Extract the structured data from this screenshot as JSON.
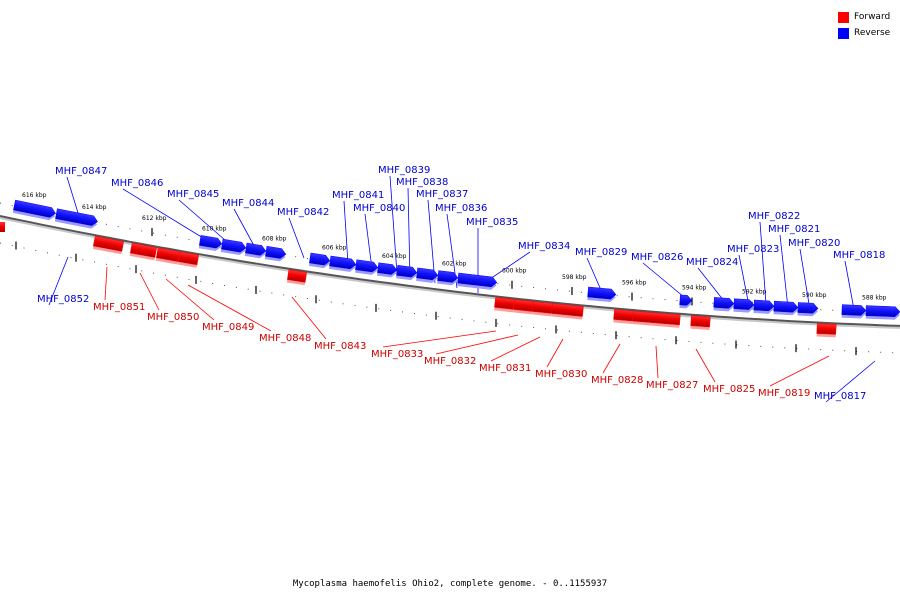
{
  "legend": {
    "forward_label": "Forward",
    "reverse_label": "Reverse",
    "forward_color": "#ff0000",
    "reverse_color": "#0000ff"
  },
  "caption": "Mycoplasma haemofelis Ohio2, complete genome. - 0..1155937",
  "ticks": [
    "616 kbp",
    "614 kbp",
    "612 kbp",
    "610 kbp",
    "608 kbp",
    "606 kbp",
    "604 kbp",
    "602 kbp",
    "600 kbp",
    "598 kbp",
    "596 kbp",
    "594 kbp",
    "592 kbp",
    "590 kbp",
    "588 kbp"
  ],
  "genes": [
    {
      "id": "MHF_0852",
      "strand": "reverse"
    },
    {
      "id": "MHF_0847",
      "strand": "reverse"
    },
    {
      "id": "MHF_0851",
      "strand": "forward"
    },
    {
      "id": "MHF_0846",
      "strand": "reverse"
    },
    {
      "id": "MHF_0850",
      "strand": "forward"
    },
    {
      "id": "MHF_0845",
      "strand": "reverse"
    },
    {
      "id": "MHF_0849",
      "strand": "forward"
    },
    {
      "id": "MHF_0844",
      "strand": "reverse"
    },
    {
      "id": "MHF_0848",
      "strand": "forward"
    },
    {
      "id": "MHF_0842",
      "strand": "reverse"
    },
    {
      "id": "MHF_0843",
      "strand": "forward"
    },
    {
      "id": "MHF_0841",
      "strand": "reverse"
    },
    {
      "id": "MHF_0840",
      "strand": "reverse"
    },
    {
      "id": "MHF_0839",
      "strand": "reverse"
    },
    {
      "id": "MHF_0838",
      "strand": "reverse"
    },
    {
      "id": "MHF_0837",
      "strand": "reverse"
    },
    {
      "id": "MHF_0836",
      "strand": "reverse"
    },
    {
      "id": "MHF_0835",
      "strand": "reverse"
    },
    {
      "id": "MHF_0833",
      "strand": "forward"
    },
    {
      "id": "MHF_0832",
      "strand": "forward"
    },
    {
      "id": "MHF_0831",
      "strand": "forward"
    },
    {
      "id": "MHF_0830",
      "strand": "forward"
    },
    {
      "id": "MHF_0834",
      "strand": "reverse"
    },
    {
      "id": "MHF_0829",
      "strand": "reverse"
    },
    {
      "id": "MHF_0828",
      "strand": "forward"
    },
    {
      "id": "MHF_0827",
      "strand": "forward"
    },
    {
      "id": "MHF_0826",
      "strand": "reverse"
    },
    {
      "id": "MHF_0825",
      "strand": "forward"
    },
    {
      "id": "MHF_0824",
      "strand": "reverse"
    },
    {
      "id": "MHF_0823",
      "strand": "reverse"
    },
    {
      "id": "MHF_0822",
      "strand": "reverse"
    },
    {
      "id": "MHF_0821",
      "strand": "reverse"
    },
    {
      "id": "MHF_0820",
      "strand": "reverse"
    },
    {
      "id": "MHF_0819",
      "strand": "forward"
    },
    {
      "id": "MHF_0818",
      "strand": "reverse"
    },
    {
      "id": "MHF_0817",
      "strand": "reverse"
    }
  ]
}
